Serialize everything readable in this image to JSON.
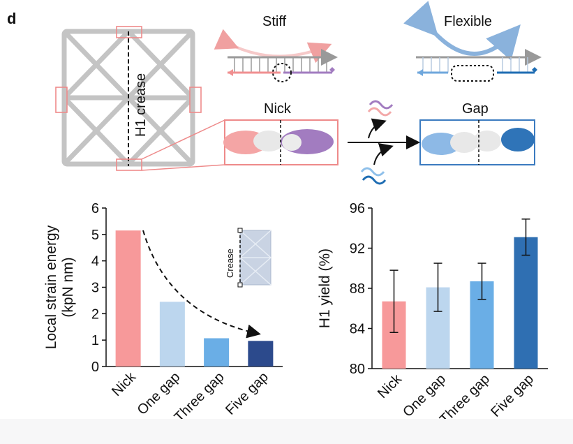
{
  "panel_letter": "d",
  "schematic": {
    "crease_label": "H1 crease",
    "stiff_label": "Stiff",
    "flexible_label": "Flexible",
    "nick_label": "Nick",
    "gap_label": "Gap",
    "inset_crease_label": "Crease"
  },
  "colors": {
    "nick": "#f7999a",
    "one_gap": "#bcd6ee",
    "three_gap": "#6aaee6",
    "five_gap_left": "#2c4a8c",
    "five_gap_right": "#2f6fb2",
    "nick_purple": "#a27cc0",
    "gap_blue": "#2f74b8"
  },
  "chart_data": [
    {
      "type": "bar",
      "categories": [
        "Nick",
        "One gap",
        "Three gap",
        "Five gap"
      ],
      "values": [
        5.15,
        2.45,
        1.07,
        0.97
      ],
      "ylabel": "Local strain energy\n(kpN nm)",
      "ylim": [
        0,
        6
      ],
      "yticks": [
        "0",
        "1",
        "2",
        "3",
        "4",
        "5",
        "6"
      ],
      "grid": false
    },
    {
      "type": "bar",
      "categories": [
        "Nick",
        "One gap",
        "Three gap",
        "Five gap"
      ],
      "values": [
        86.7,
        88.1,
        88.7,
        93.1
      ],
      "errors": [
        3.1,
        2.4,
        1.8,
        1.8
      ],
      "ylabel": "H1 yield (%)",
      "ylim": [
        80,
        96
      ],
      "yticks": [
        "80",
        "84",
        "88",
        "92",
        "96"
      ],
      "grid": false
    }
  ]
}
